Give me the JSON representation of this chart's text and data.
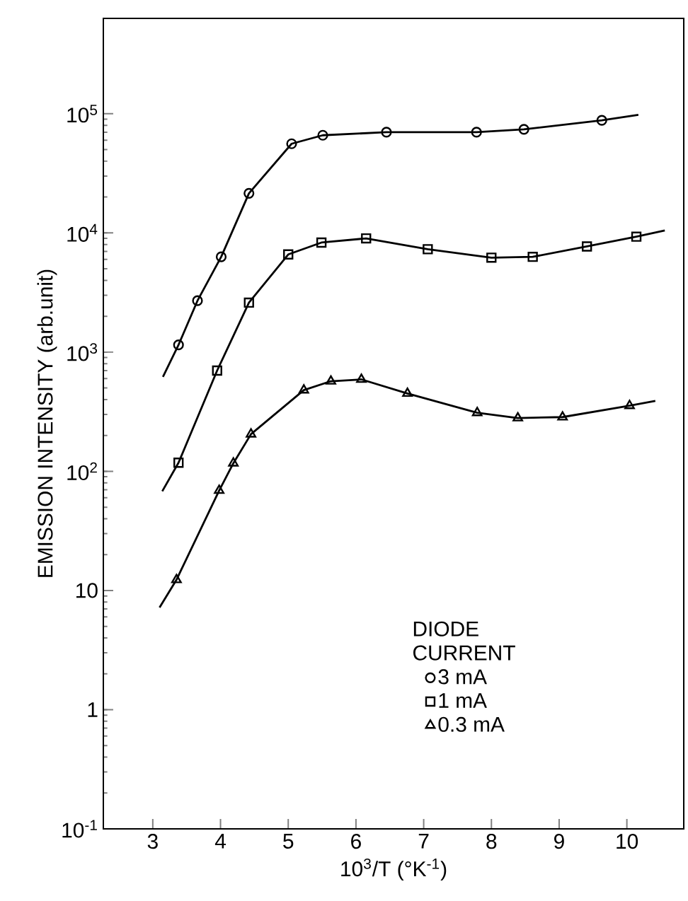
{
  "chart_data": {
    "type": "scatter",
    "xlabel": "10$^{3}$/T (°K$^{-1}$)",
    "ylabel": "EMISSION INTENSITY (arb.unit)",
    "legend_title": "DIODE CURRENT",
    "legend": "bottom right",
    "log": "y",
    "grid": false,
    "xlim": [
      2.27,
      10.84
    ],
    "ylim": [
      0.1,
      631000
    ],
    "xticks": [
      3,
      4,
      5,
      6,
      7,
      8,
      9,
      10
    ],
    "yticks": [
      {
        "value": 0.1,
        "label": "10$^{-1}$"
      },
      1,
      10,
      {
        "value": 100,
        "label": "10$^{2}$"
      },
      {
        "value": 1000,
        "label": "10$^{3}$"
      },
      {
        "value": 10000,
        "label": "10$^{4}$"
      },
      {
        "value": 100000,
        "label": "10$^{5}$"
      }
    ],
    "series": [
      {
        "type": "line",
        "color": "#000000",
        "marker": "none",
        "x": [
          3.15,
          3.38,
          3.66,
          4.01,
          4.42,
          5.05,
          5.51,
          6.45,
          7.78,
          8.48,
          9.63,
          10.17
        ],
        "values": [
          620,
          1150,
          2700,
          6300,
          21500,
          56000,
          66000,
          70000,
          70000,
          74000,
          88000,
          98000
        ]
      },
      {
        "type": "line",
        "color": "#000000",
        "marker": "none",
        "x": [
          3.14,
          3.38,
          3.95,
          4.42,
          5.0,
          5.49,
          6.15,
          7.06,
          8.0,
          8.61,
          9.41,
          10.14,
          10.56
        ],
        "values": [
          68,
          118,
          700,
          2600,
          6600,
          8300,
          9000,
          7300,
          6200,
          6300,
          7700,
          9300,
          10500
        ]
      },
      {
        "type": "line",
        "color": "#000000",
        "marker": "none",
        "x": [
          3.1,
          3.35,
          3.98,
          4.19,
          4.45,
          5.23,
          5.63,
          6.08,
          6.76,
          7.79,
          8.39,
          9.05,
          10.04,
          10.42
        ],
        "values": [
          7.2,
          12.3,
          69,
          117,
          205,
          480,
          570,
          590,
          450,
          310,
          280,
          285,
          355,
          390
        ]
      },
      {
        "name": "3 mA",
        "color": "#000000",
        "marker": "circle",
        "x": [
          3.38,
          3.66,
          4.01,
          4.42,
          5.05,
          5.51,
          6.45,
          7.78,
          8.48,
          9.63
        ],
        "values": [
          1150,
          2700,
          6300,
          21500,
          56000,
          66000,
          70000,
          70000,
          74000,
          88000
        ]
      },
      {
        "name": "1 mA",
        "color": "#000000",
        "marker": "square",
        "x": [
          3.38,
          3.95,
          4.42,
          5.0,
          5.49,
          6.15,
          7.06,
          8.0,
          8.61,
          9.41,
          10.14
        ],
        "values": [
          118,
          700,
          2600,
          6600,
          8300,
          9000,
          7300,
          6200,
          6300,
          7700,
          9300
        ]
      },
      {
        "name": "0.3 mA",
        "color": "#000000",
        "marker": "triangle",
        "x": [
          3.35,
          3.98,
          4.19,
          4.45,
          5.23,
          5.63,
          6.08,
          6.76,
          7.79,
          8.39,
          9.05,
          10.04
        ],
        "values": [
          12.3,
          69,
          117,
          205,
          480,
          570,
          590,
          450,
          310,
          280,
          285,
          355
        ]
      }
    ]
  }
}
